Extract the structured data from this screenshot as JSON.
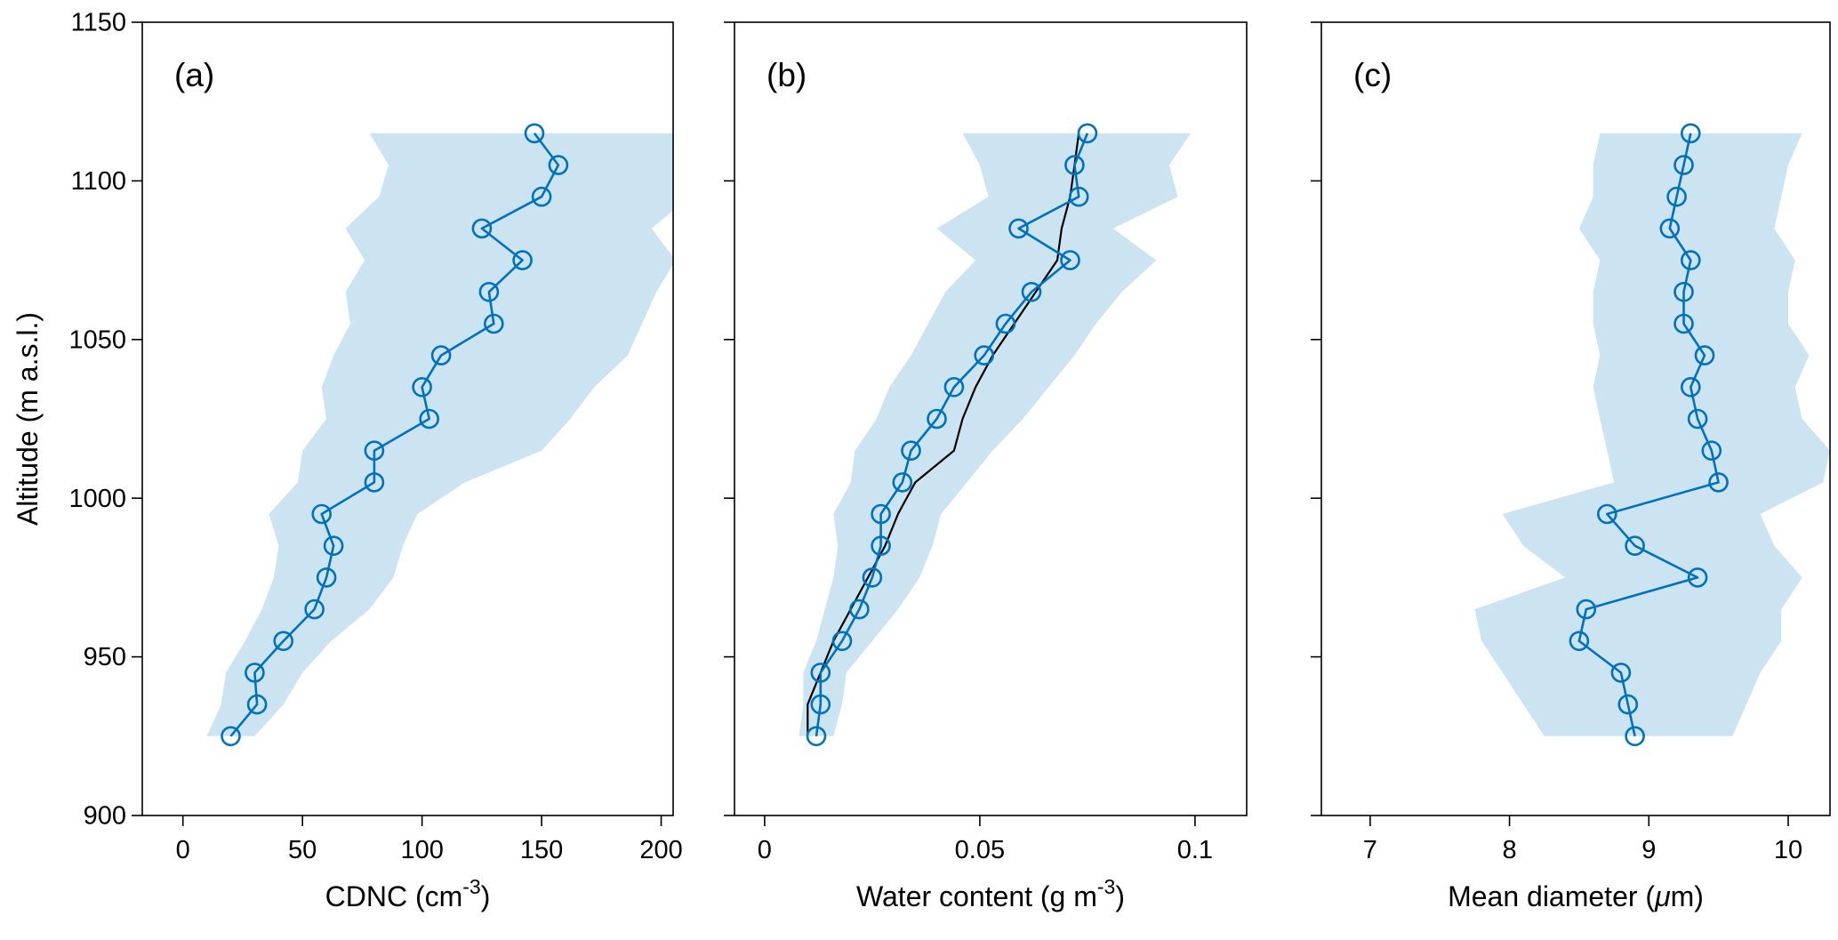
{
  "figure": {
    "ylabel": "Altitude (m a.s.l.)",
    "background": "#ffffff"
  },
  "colors": {
    "line_blue": "#0072BD",
    "band_blue": "rgba(0,114,189,0.20)",
    "reference_black": "#000000",
    "axis": "#000000"
  },
  "chart_data": [
    {
      "type": "line",
      "panel_label": "(a)",
      "xlabel_parts": [
        {
          "text": "CDNC (cm"
        },
        {
          "text": "-3",
          "sup": true
        },
        {
          "text": ")"
        }
      ],
      "xlim": [
        -17,
        205
      ],
      "xticks": [
        {
          "v": 0,
          "t": "0"
        },
        {
          "v": 50,
          "t": "50"
        },
        {
          "v": 100,
          "t": "100"
        },
        {
          "v": 150,
          "t": "150"
        },
        {
          "v": 200,
          "t": "200"
        }
      ],
      "ylim": [
        900,
        1150
      ],
      "yticks": [
        {
          "v": 900,
          "t": "900"
        },
        {
          "v": 950,
          "t": "950"
        },
        {
          "v": 1000,
          "t": "1000"
        },
        {
          "v": 1050,
          "t": "1050"
        },
        {
          "v": 1100,
          "t": "1100"
        },
        {
          "v": 1150,
          "t": "1150"
        }
      ],
      "show_ytick_labels": true,
      "legend": "none",
      "grid": false,
      "y_altitude": [
        925,
        935,
        945,
        955,
        965,
        975,
        985,
        995,
        1005,
        1015,
        1025,
        1035,
        1045,
        1055,
        1065,
        1075,
        1085,
        1095,
        1105,
        1115
      ],
      "mean": [
        20,
        31,
        30,
        42,
        55,
        60,
        63,
        58,
        80,
        80,
        103,
        100,
        108,
        130,
        128,
        142,
        125,
        150,
        157,
        147
      ],
      "band_lower": [
        10,
        16,
        18,
        26,
        33,
        38,
        40,
        36,
        48,
        50,
        60,
        58,
        63,
        70,
        68,
        76,
        68,
        82,
        86,
        78
      ],
      "band_upper": [
        30,
        42,
        50,
        62,
        78,
        88,
        92,
        98,
        118,
        150,
        162,
        172,
        186,
        192,
        198,
        206,
        196,
        212,
        218,
        214
      ]
    },
    {
      "type": "line",
      "panel_label": "(b)",
      "xlabel_parts": [
        {
          "text": "Water content (g m"
        },
        {
          "text": "-3",
          "sup": true
        },
        {
          "text": ")"
        }
      ],
      "xlim": [
        -0.007,
        0.112
      ],
      "xticks": [
        {
          "v": 0,
          "t": "0"
        },
        {
          "v": 0.05,
          "t": "0.05"
        },
        {
          "v": 0.1,
          "t": "0.1"
        }
      ],
      "ylim": [
        900,
        1150
      ],
      "yticks": [
        {
          "v": 900,
          "t": "900"
        },
        {
          "v": 950,
          "t": "950"
        },
        {
          "v": 1000,
          "t": "1000"
        },
        {
          "v": 1050,
          "t": "1050"
        },
        {
          "v": 1100,
          "t": "1100"
        },
        {
          "v": 1150,
          "t": "1150"
        }
      ],
      "show_ytick_labels": false,
      "legend": "none",
      "grid": false,
      "y_altitude": [
        925,
        935,
        945,
        955,
        965,
        975,
        985,
        995,
        1005,
        1015,
        1025,
        1035,
        1045,
        1055,
        1065,
        1075,
        1085,
        1095,
        1105,
        1115
      ],
      "mean": [
        0.012,
        0.013,
        0.013,
        0.018,
        0.022,
        0.025,
        0.027,
        0.027,
        0.032,
        0.034,
        0.04,
        0.044,
        0.051,
        0.056,
        0.062,
        0.071,
        0.059,
        0.073,
        0.072,
        0.075
      ],
      "reference_line": {
        "name": "reference",
        "values": [
          0.01,
          0.01,
          0.013,
          0.016,
          0.02,
          0.024,
          0.028,
          0.031,
          0.035,
          0.044,
          0.046,
          0.049,
          0.053,
          0.058,
          0.063,
          0.068,
          0.069,
          0.071,
          0.072,
          0.073
        ]
      },
      "band_lower": [
        0.008,
        0.009,
        0.009,
        0.012,
        0.014,
        0.016,
        0.017,
        0.016,
        0.02,
        0.021,
        0.026,
        0.029,
        0.034,
        0.038,
        0.042,
        0.049,
        0.04,
        0.052,
        0.05,
        0.046
      ],
      "band_upper": [
        0.016,
        0.018,
        0.019,
        0.025,
        0.031,
        0.036,
        0.039,
        0.041,
        0.047,
        0.053,
        0.06,
        0.066,
        0.072,
        0.077,
        0.083,
        0.091,
        0.081,
        0.096,
        0.094,
        0.099
      ]
    },
    {
      "type": "line",
      "panel_label": "(c)",
      "xlabel_parts": [
        {
          "text": "Mean diameter ("
        },
        {
          "text": "μ",
          "italic": true
        },
        {
          "text": "m)"
        }
      ],
      "xlim": [
        6.65,
        10.3
      ],
      "xticks": [
        {
          "v": 7,
          "t": "7"
        },
        {
          "v": 8,
          "t": "8"
        },
        {
          "v": 9,
          "t": "9"
        },
        {
          "v": 10,
          "t": "10"
        }
      ],
      "ylim": [
        900,
        1150
      ],
      "yticks": [
        {
          "v": 900,
          "t": "900"
        },
        {
          "v": 950,
          "t": "950"
        },
        {
          "v": 1000,
          "t": "1000"
        },
        {
          "v": 1050,
          "t": "1050"
        },
        {
          "v": 1100,
          "t": "1100"
        },
        {
          "v": 1150,
          "t": "1150"
        }
      ],
      "show_ytick_labels": false,
      "legend": "none",
      "grid": false,
      "y_altitude": [
        925,
        935,
        945,
        955,
        965,
        975,
        985,
        995,
        1005,
        1015,
        1025,
        1035,
        1045,
        1055,
        1065,
        1075,
        1085,
        1095,
        1105,
        1115
      ],
      "mean": [
        8.9,
        8.85,
        8.8,
        8.5,
        8.55,
        9.35,
        8.9,
        8.7,
        9.5,
        9.45,
        9.35,
        9.3,
        9.4,
        9.25,
        9.25,
        9.3,
        9.15,
        9.2,
        9.25,
        9.3
      ],
      "band_lower": [
        8.25,
        8.1,
        7.95,
        7.8,
        7.75,
        8.4,
        8.1,
        7.95,
        8.75,
        8.7,
        8.65,
        8.6,
        8.65,
        8.6,
        8.6,
        8.65,
        8.5,
        8.6,
        8.6,
        8.65
      ],
      "band_upper": [
        9.6,
        9.7,
        9.8,
        9.95,
        9.95,
        10.1,
        9.9,
        9.8,
        10.25,
        10.3,
        10.1,
        10.05,
        10.15,
        10.0,
        10.0,
        10.05,
        9.9,
        9.95,
        10.0,
        10.1
      ]
    }
  ]
}
